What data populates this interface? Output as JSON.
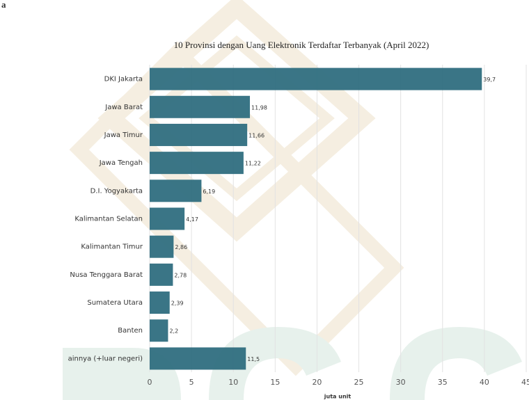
{
  "fragment": "a",
  "chart_data": {
    "type": "hbar",
    "title": "10 Provinsi dengan Uang Elektronik Terdaftar Terbanyak (April 2022)",
    "x_label": "juta unit",
    "categories": [
      "DKI Jakarta",
      "Jawa Barat",
      "Jawa Timur",
      "Jawa Tengah",
      "D.I. Yogyakarta",
      "Kalimantan Selatan",
      "Kalimantan Timur",
      "Nusa Tenggara Barat",
      "Sumatera Utara",
      "Banten",
      "ainnya (+luar negeri)"
    ],
    "values": [
      39.7,
      11.98,
      11.66,
      11.22,
      6.19,
      4.17,
      2.86,
      2.78,
      2.39,
      2.2,
      11.5
    ],
    "value_labels": [
      "39,7",
      "11,98",
      "11,66",
      "11,22",
      "6,19",
      "4,17",
      "2,86",
      "2,78",
      "2,39",
      "2,2",
      "11,5"
    ],
    "color": "#2f6e80",
    "xlim": [
      0,
      45
    ],
    "xticks": [
      0,
      5,
      10,
      15,
      20,
      25,
      30,
      35,
      40,
      45
    ],
    "grid": true
  }
}
